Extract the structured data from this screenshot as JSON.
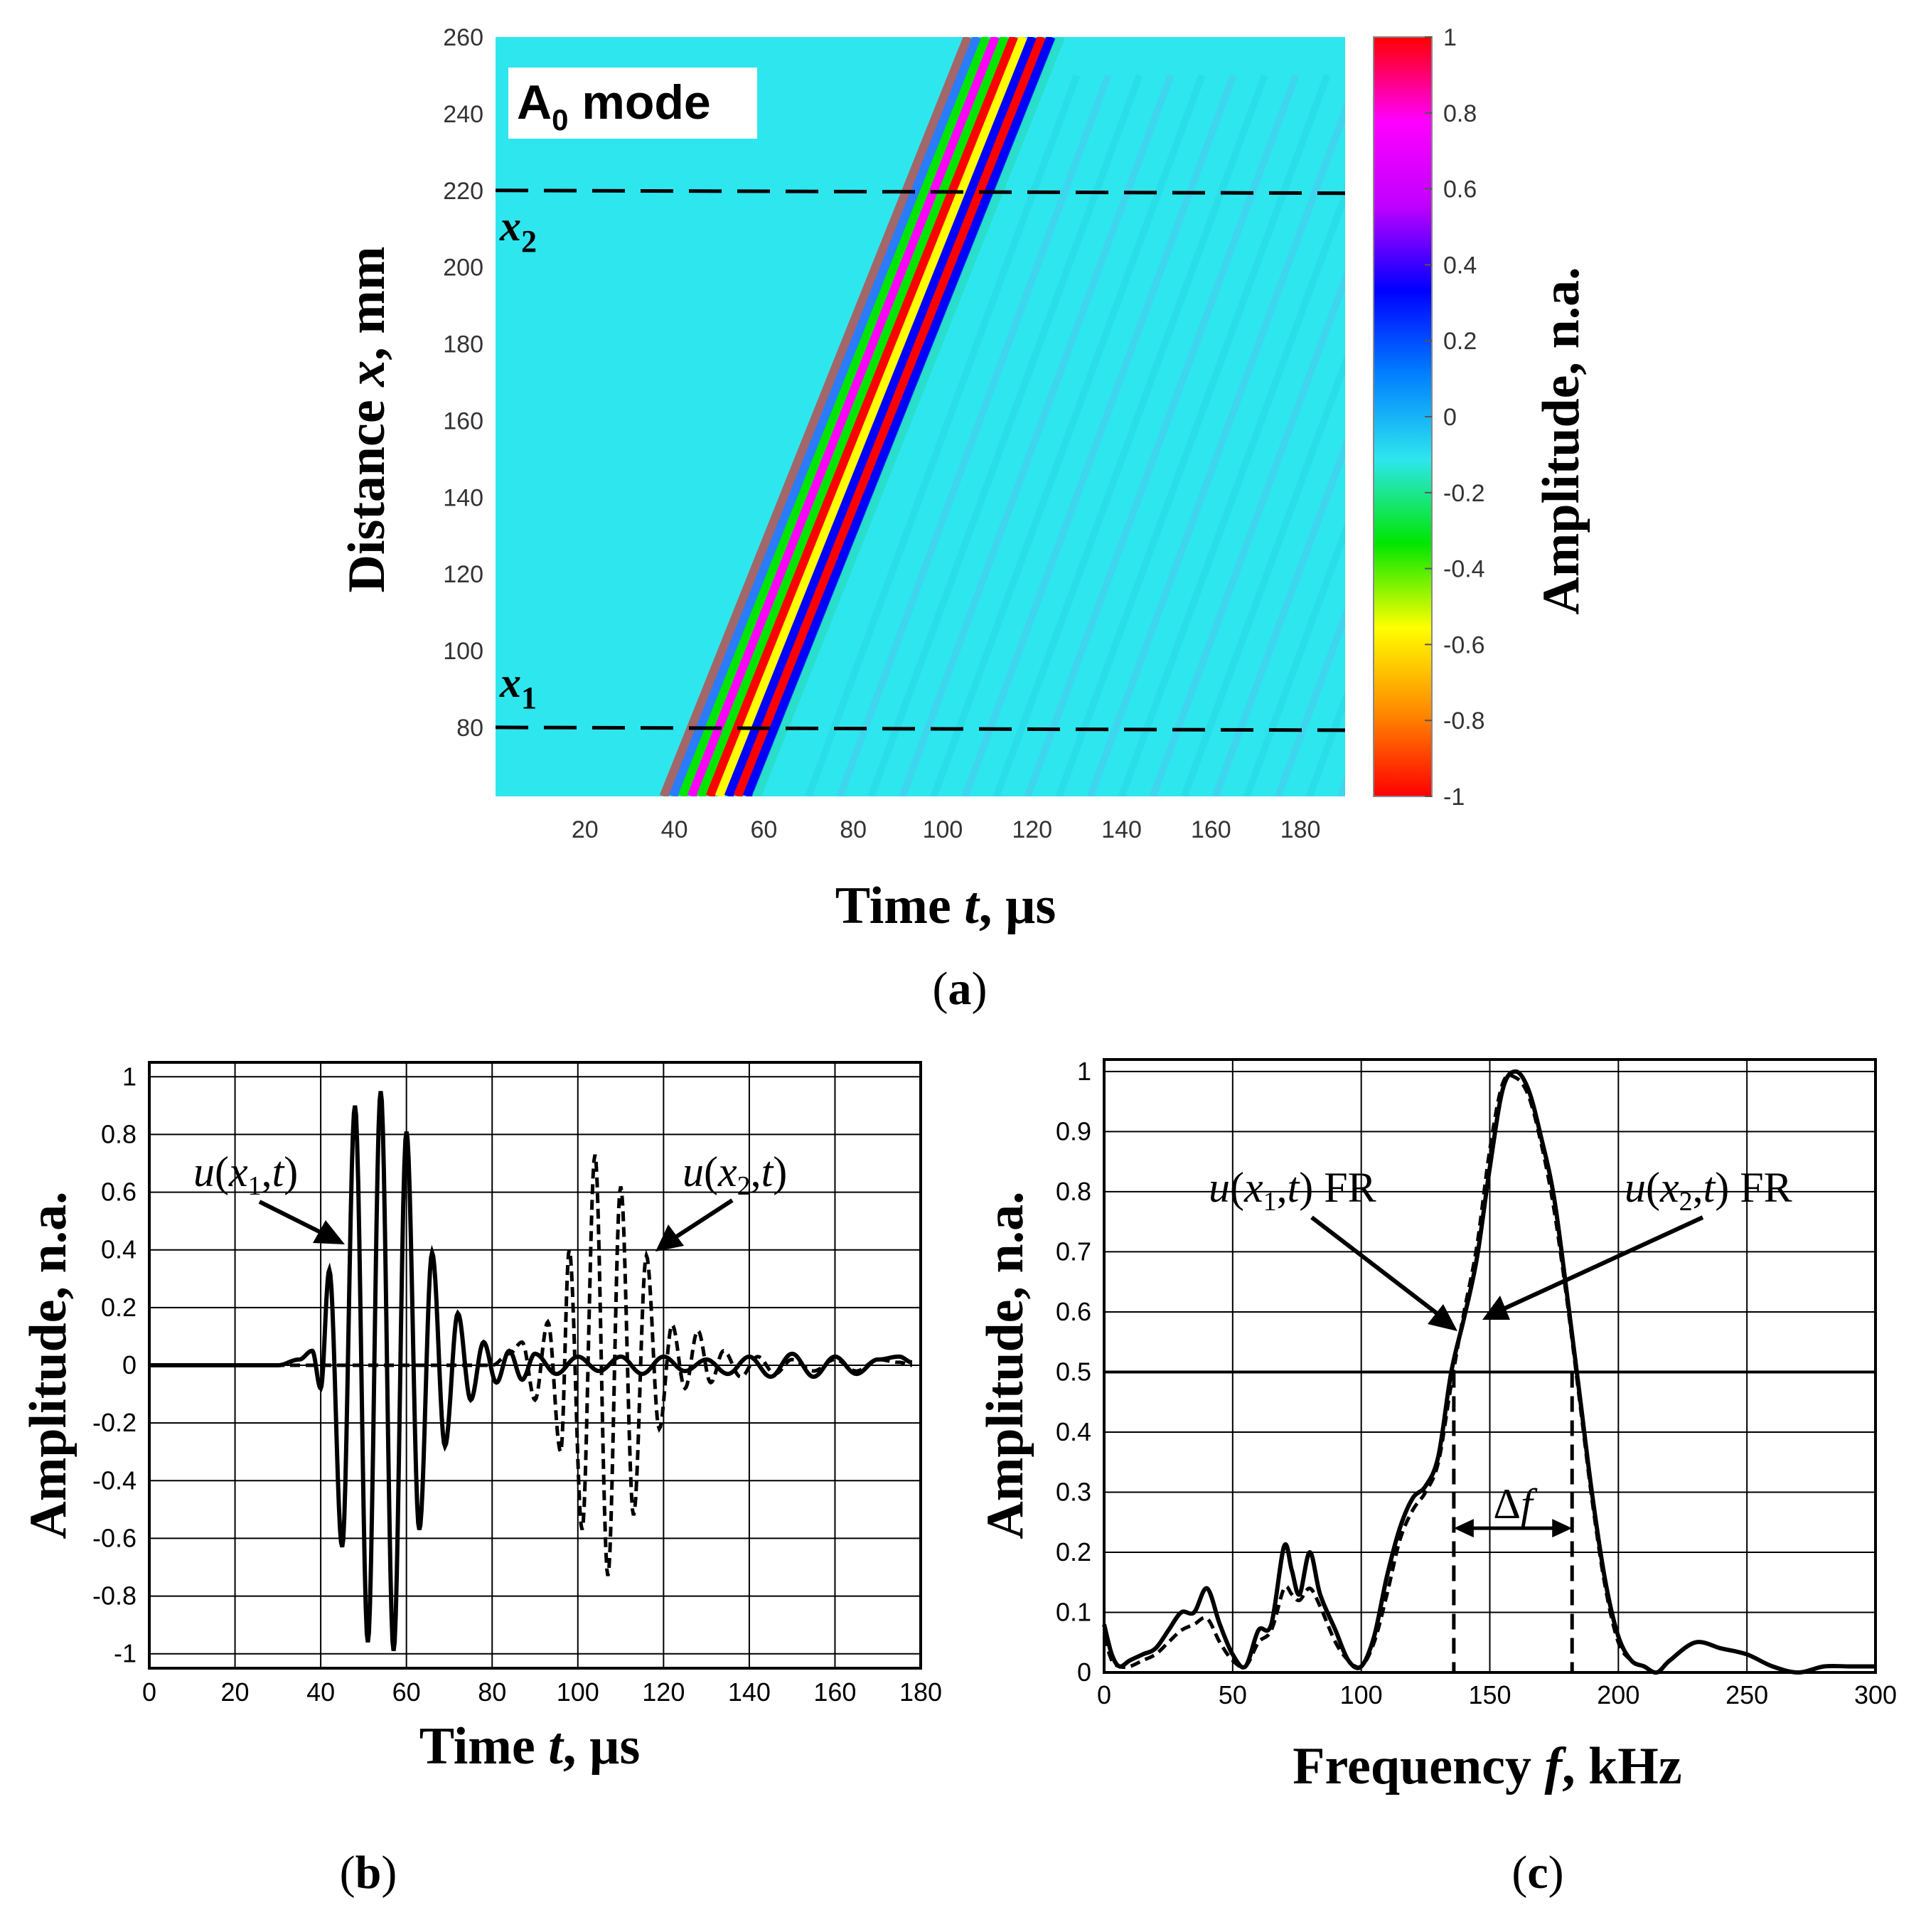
{
  "chart_data": [
    {
      "id": "a",
      "type": "heatmap",
      "panel_label": {
        "open": "(",
        "letter": "a",
        "close": ")"
      },
      "title": "",
      "xlabel": {
        "pre": "Time ",
        "var": "t",
        "post": ", µs"
      },
      "ylabel": {
        "pre": "Distance ",
        "var": "x",
        "post": ", mm"
      },
      "xlim": [
        0,
        190
      ],
      "ylim": [
        62,
        260
      ],
      "xticks": [
        20,
        40,
        60,
        80,
        100,
        120,
        140,
        160,
        180
      ],
      "yticks": [
        80,
        100,
        120,
        140,
        160,
        180,
        200,
        220,
        240,
        260
      ],
      "mode_label": {
        "main": "A",
        "sub": "0",
        "rest": " mode"
      },
      "wave_band": {
        "start": [
          48,
          62
        ],
        "end": [
          116,
          260
        ]
      },
      "wave_fringes_per_side": 5,
      "dashed_lines": [
        {
          "y": 80,
          "label": "x",
          "sub": "1"
        },
        {
          "y": 220,
          "label": "x",
          "sub": "2"
        }
      ],
      "colorbar": {
        "label": "Amplitude, n.a.",
        "ticks": [
          1,
          0.8,
          0.6,
          0.4,
          0.2,
          0,
          -0.2,
          -0.4,
          -0.6,
          -0.8,
          -1
        ],
        "range": [
          -1,
          1
        ]
      },
      "colors": {
        "background": "#2ee6ee",
        "stops": [
          "#ff0000",
          "#ff8a00",
          "#ffff00",
          "#00e600",
          "#2ee6ee",
          "#0080ff",
          "#0000ff",
          "#c000ff",
          "#ff00ff",
          "#ff0000"
        ]
      }
    },
    {
      "id": "b",
      "type": "line",
      "panel_label": {
        "open": "(",
        "letter": "b",
        "close": ")"
      },
      "xlabel": {
        "pre": "Time ",
        "var": "t",
        "post": ", µs"
      },
      "ylabel": "Amplitude, n.a.",
      "xlim": [
        0,
        180
      ],
      "ylim": [
        -1.05,
        1.05
      ],
      "xticks": [
        0,
        20,
        40,
        60,
        80,
        100,
        120,
        140,
        160,
        180
      ],
      "yticks": [
        "1",
        "0.8",
        "0.6",
        "0.4",
        "0.2",
        "0",
        "-0.2",
        "-0.4",
        "-0.6",
        "-0.8",
        "-1"
      ],
      "grid": true,
      "series": [
        {
          "name": "u(x1,t)",
          "style": "solid",
          "annotation": {
            "u": "u",
            "open": "(",
            "x": "x",
            "sub": "1",
            "comma": ",",
            "t": "t",
            "close": ")"
          },
          "t": [
            0,
            30,
            35,
            38,
            40,
            42,
            45,
            48,
            51,
            54,
            57,
            60,
            63,
            66,
            69,
            72,
            75,
            78,
            81,
            84,
            87,
            90,
            95,
            100,
            105,
            110,
            115,
            120,
            125,
            130,
            135,
            140,
            145,
            150,
            155,
            160,
            165,
            170,
            175,
            178
          ],
          "values": [
            0,
            0,
            0.02,
            0.05,
            -0.08,
            0.33,
            -0.63,
            0.9,
            -0.96,
            0.95,
            -0.99,
            0.81,
            -0.57,
            0.39,
            -0.28,
            0.18,
            -0.12,
            0.08,
            -0.06,
            0.05,
            -0.05,
            0.04,
            -0.03,
            0.03,
            -0.02,
            0.03,
            -0.03,
            0.03,
            -0.02,
            0.02,
            -0.03,
            0.03,
            -0.04,
            0.04,
            -0.04,
            0.03,
            -0.03,
            0.02,
            0.03,
            0.01
          ]
        },
        {
          "name": "u(x2,t)",
          "style": "dashed",
          "annotation": {
            "u": "u",
            "open": "(",
            "x": "x",
            "sub": "2",
            "comma": ",",
            "t": "t",
            "close": ")"
          },
          "t": [
            0,
            80,
            84,
            87,
            90,
            93,
            96,
            98,
            101,
            104,
            107,
            110,
            113,
            116,
            119,
            122,
            125,
            128,
            131,
            134,
            138,
            142,
            146,
            150,
            155,
            160,
            165,
            170,
            175,
            178
          ],
          "values": [
            0,
            0,
            0.04,
            0.08,
            -0.12,
            0.15,
            -0.3,
            0.4,
            -0.57,
            0.73,
            -0.73,
            0.62,
            -0.52,
            0.38,
            -0.22,
            0.14,
            -0.08,
            0.12,
            -0.06,
            0.05,
            -0.04,
            0.03,
            -0.03,
            0.02,
            -0.02,
            0.02,
            -0.02,
            0.02,
            0.01,
            0
          ]
        }
      ]
    },
    {
      "id": "c",
      "type": "line",
      "panel_label": {
        "open": "(",
        "letter": "c",
        "close": ")"
      },
      "xlabel": {
        "pre": "Frequency ",
        "var": "f",
        "post": ", kHz"
      },
      "ylabel": "Amplitude, n.a.",
      "xlim": [
        0,
        300
      ],
      "ylim": [
        0,
        1.02
      ],
      "xticks": [
        0,
        50,
        100,
        150,
        200,
        250,
        300
      ],
      "yticks": [
        "0",
        "0.1",
        "0.2",
        "0.3",
        "0.4",
        "0.5",
        "0.6",
        "0.7",
        "0.8",
        "0.9",
        "1"
      ],
      "grid": true,
      "half_power_level": 0.5,
      "bandwidth": {
        "f1": 136,
        "f2": 182,
        "label": "Δ",
        "var": "f",
        "y": 0.24
      },
      "series": [
        {
          "name": "u(x1,t) FR",
          "style": "solid",
          "annotation": {
            "u": "u",
            "open": "(",
            "x": "x",
            "sub": "1",
            "comma": ",",
            "t": "t",
            "close": ") FR"
          },
          "f": [
            0,
            3,
            6,
            10,
            15,
            20,
            25,
            30,
            35,
            40,
            45,
            50,
            55,
            60,
            65,
            70,
            73,
            76,
            80,
            84,
            90,
            95,
            100,
            105,
            110,
            115,
            120,
            125,
            130,
            135,
            140,
            145,
            150,
            155,
            160,
            165,
            170,
            175,
            180,
            185,
            190,
            195,
            200,
            205,
            210,
            215,
            220,
            230,
            240,
            250,
            260,
            270,
            280,
            290,
            300
          ],
          "values": [
            0.08,
            0.03,
            0.01,
            0.02,
            0.03,
            0.04,
            0.07,
            0.1,
            0.1,
            0.14,
            0.08,
            0.03,
            0.01,
            0.07,
            0.08,
            0.21,
            0.17,
            0.13,
            0.2,
            0.13,
            0.07,
            0.02,
            0.01,
            0.06,
            0.16,
            0.24,
            0.29,
            0.31,
            0.36,
            0.5,
            0.59,
            0.69,
            0.84,
            0.97,
            1.0,
            0.97,
            0.89,
            0.79,
            0.63,
            0.46,
            0.29,
            0.15,
            0.06,
            0.02,
            0.01,
            0.0,
            0.02,
            0.05,
            0.04,
            0.03,
            0.01,
            0.0,
            0.01,
            0.01,
            0.01
          ]
        },
        {
          "name": "u(x2,t) FR",
          "style": "dashed",
          "annotation": {
            "u": "u",
            "open": "(",
            "x": "x",
            "sub": "2",
            "comma": ",",
            "t": "t",
            "close": ") FR"
          },
          "f": [
            0,
            3,
            6,
            10,
            15,
            20,
            25,
            30,
            35,
            40,
            45,
            50,
            55,
            60,
            65,
            70,
            73,
            76,
            80,
            84,
            90,
            95,
            100,
            105,
            110,
            115,
            120,
            125,
            130,
            135,
            140,
            145,
            150,
            155,
            160,
            165,
            170,
            175,
            180,
            185,
            190,
            195,
            200,
            205,
            210,
            215,
            220,
            230,
            240,
            250,
            260,
            270,
            280,
            290,
            300
          ],
          "values": [
            0.06,
            0.02,
            0.01,
            0.01,
            0.02,
            0.03,
            0.05,
            0.07,
            0.08,
            0.09,
            0.05,
            0.02,
            0.01,
            0.05,
            0.07,
            0.14,
            0.13,
            0.12,
            0.14,
            0.11,
            0.05,
            0.02,
            0.01,
            0.05,
            0.13,
            0.22,
            0.27,
            0.3,
            0.35,
            0.48,
            0.6,
            0.71,
            0.87,
            0.98,
            0.99,
            0.96,
            0.88,
            0.77,
            0.62,
            0.45,
            0.28,
            0.14,
            0.05,
            0.02,
            0.01,
            0.0,
            0.02,
            0.05,
            0.04,
            0.03,
            0.01,
            0.0,
            0.01,
            0.01,
            0.01
          ]
        }
      ]
    }
  ]
}
